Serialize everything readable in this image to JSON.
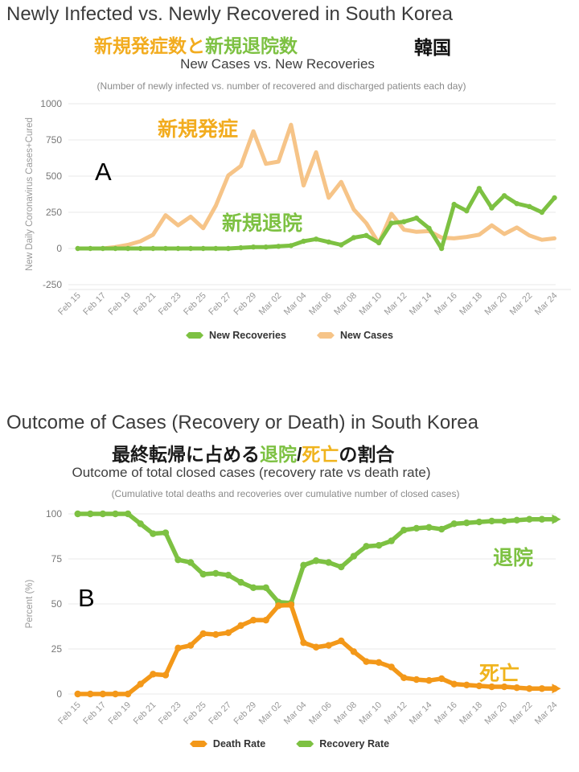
{
  "page": {
    "background": "#ffffff"
  },
  "chart_data": [
    {
      "id": "A",
      "type": "line",
      "title": "Newly Infected vs. Newly Recovered in South Korea",
      "title_jp_segments": [
        {
          "text": "新規発症数と",
          "color": "#F2AC1F"
        },
        {
          "text": "新規退院数",
          "color": "#7DC142"
        }
      ],
      "corner_label_jp": "韓国",
      "subtitle": "New Cases vs. New Recoveries",
      "note": "(Number of newly infected vs. number of recovered and discharged patients each day)",
      "annotation": "A",
      "ylabel": "New Daily Coronavirus Cases+Cured",
      "ylim": [
        -250,
        1000
      ],
      "yticks": [
        1000,
        750,
        500,
        250,
        0,
        -250
      ],
      "grid": true,
      "legend_position": "bottom",
      "xtick_every": 2,
      "x": [
        "Feb 15",
        "Feb 16",
        "Feb 17",
        "Feb 18",
        "Feb 19",
        "Feb 20",
        "Feb 21",
        "Feb 22",
        "Feb 23",
        "Feb 24",
        "Feb 25",
        "Feb 26",
        "Feb 27",
        "Feb 28",
        "Feb 29",
        "Mar 01",
        "Mar 02",
        "Mar 03",
        "Mar 04",
        "Mar 05",
        "Mar 06",
        "Mar 07",
        "Mar 08",
        "Mar 09",
        "Mar 10",
        "Mar 11",
        "Mar 12",
        "Mar 13",
        "Mar 14",
        "Mar 15",
        "Mar 16",
        "Mar 17",
        "Mar 18",
        "Mar 19",
        "Mar 20",
        "Mar 21",
        "Mar 22",
        "Mar 23",
        "Mar 24"
      ],
      "series": [
        {
          "name": "New Cases",
          "color": "#F6C488",
          "markers": false,
          "arrow": false,
          "values": [
            0,
            0,
            0,
            10,
            25,
            50,
            95,
            230,
            160,
            220,
            140,
            295,
            505,
            570,
            810,
            585,
            600,
            855,
            435,
            665,
            350,
            460,
            270,
            175,
            35,
            240,
            130,
            115,
            120,
            75,
            70,
            80,
            95,
            160,
            100,
            145,
            90,
            60,
            70
          ]
        },
        {
          "name": "New Recoveries",
          "color": "#7DC142",
          "markers": true,
          "arrow": false,
          "values": [
            0,
            0,
            0,
            0,
            0,
            0,
            0,
            0,
            0,
            0,
            0,
            0,
            0,
            5,
            10,
            10,
            15,
            20,
            50,
            65,
            45,
            25,
            75,
            90,
            40,
            175,
            185,
            210,
            140,
            0,
            305,
            260,
            415,
            280,
            365,
            310,
            290,
            250,
            350
          ]
        }
      ],
      "line_labels": [
        {
          "text": "新規発症",
          "color": "#F2AC1F"
        },
        {
          "text": "新規退院",
          "color": "#7DC142"
        }
      ],
      "legend": [
        {
          "label": "New Recoveries",
          "color": "#7DC142"
        },
        {
          "label": "New Cases",
          "color": "#F6C488"
        }
      ]
    },
    {
      "id": "B",
      "type": "line",
      "title": "Outcome of Cases (Recovery or Death) in South Korea",
      "title_jp_segments": [
        {
          "text": "最終転帰に占める",
          "color": "#1a1a1a"
        },
        {
          "text": "退院",
          "color": "#7DC142"
        },
        {
          "text": "/",
          "color": "#1a1a1a"
        },
        {
          "text": "死亡",
          "color": "#F0B41E"
        },
        {
          "text": "の割合",
          "color": "#1a1a1a"
        }
      ],
      "corner_label_jp": "",
      "subtitle": "Outcome of total closed cases (recovery rate vs death rate)",
      "note": "(Cumulative total deaths and recoveries over cumulative number of closed cases)",
      "annotation": "B",
      "ylabel": "Percent (%)",
      "ylim": [
        0,
        100
      ],
      "yticks": [
        100,
        75,
        50,
        25,
        0
      ],
      "grid": true,
      "legend_position": "bottom",
      "xtick_every": 2,
      "x": [
        "Feb 15",
        "Feb 16",
        "Feb 17",
        "Feb 18",
        "Feb 19",
        "Feb 20",
        "Feb 21",
        "Feb 22",
        "Feb 23",
        "Feb 24",
        "Feb 25",
        "Feb 26",
        "Feb 27",
        "Feb 28",
        "Feb 29",
        "Mar 01",
        "Mar 02",
        "Mar 03",
        "Mar 04",
        "Mar 05",
        "Mar 06",
        "Mar 07",
        "Mar 08",
        "Mar 09",
        "Mar 10",
        "Mar 11",
        "Mar 12",
        "Mar 13",
        "Mar 14",
        "Mar 15",
        "Mar 16",
        "Mar 17",
        "Mar 18",
        "Mar 19",
        "Mar 20",
        "Mar 21",
        "Mar 22",
        "Mar 23",
        "Mar 24"
      ],
      "series": [
        {
          "name": "Recovery Rate",
          "color": "#7DC142",
          "markers": true,
          "arrow": true,
          "values": [
            100,
            100,
            100,
            100,
            100,
            94.5,
            89,
            89.5,
            74.5,
            73,
            66.5,
            67,
            66,
            62,
            59,
            59,
            51,
            50.5,
            71.5,
            74,
            73,
            70.5,
            76.5,
            82,
            82.5,
            85,
            91,
            92,
            92.5,
            91.5,
            94.5,
            95,
            95.5,
            96,
            96,
            96.5,
            97,
            97,
            97
          ]
        },
        {
          "name": "Death Rate",
          "color": "#F39819",
          "markers": true,
          "arrow": true,
          "values": [
            0,
            0,
            0,
            0,
            0,
            5.5,
            11,
            10.5,
            25.5,
            27,
            33.5,
            33,
            34,
            38,
            41,
            41,
            49,
            49.5,
            28.5,
            26,
            27,
            29.5,
            23.5,
            18,
            17.5,
            15,
            9,
            8,
            7.5,
            8.5,
            5.5,
            5,
            4.5,
            4,
            4,
            3.5,
            3,
            3,
            3
          ]
        }
      ],
      "line_labels": [
        {
          "text": "退院",
          "color": "#7DC142"
        },
        {
          "text": "死亡",
          "color": "#F0B41E"
        }
      ],
      "legend": [
        {
          "label": "Death Rate",
          "color": "#F39819"
        },
        {
          "label": "Recovery Rate",
          "color": "#7DC142"
        }
      ]
    }
  ]
}
